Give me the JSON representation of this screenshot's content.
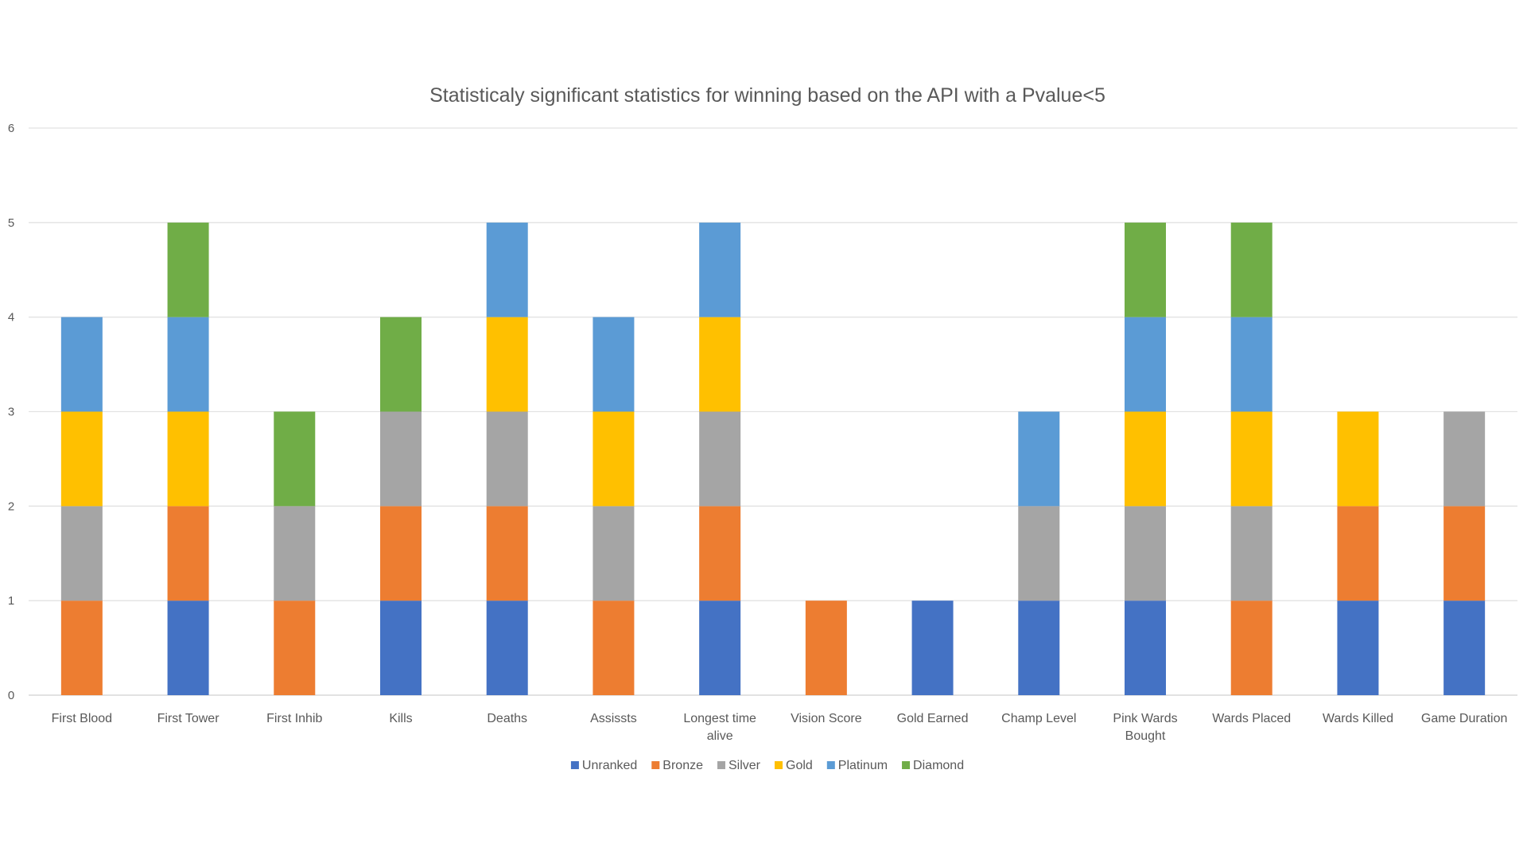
{
  "chart_data": {
    "type": "bar",
    "stacked": true,
    "title": "Statisticaly significant statistics for winning based on the API with a Pvalue<5",
    "xlabel": "",
    "ylabel": "",
    "ylim": [
      0,
      6
    ],
    "yticks": [
      0,
      1,
      2,
      3,
      4,
      5,
      6
    ],
    "grid": true,
    "legend_position": "bottom",
    "categories": [
      "First Blood",
      "First Tower",
      "First Inhib",
      "Kills",
      "Deaths",
      "Assissts",
      "Longest time alive",
      "Vision Score",
      "Gold Earned",
      "Champ Level",
      "Pink Wards Bought",
      "Wards Placed",
      "Wards Killed",
      "Game Duration"
    ],
    "series": [
      {
        "name": "Unranked",
        "color": "#4472C4",
        "values": [
          0,
          1,
          0,
          1,
          1,
          0,
          1,
          0,
          1,
          1,
          1,
          0,
          1,
          1
        ]
      },
      {
        "name": "Bronze",
        "color": "#ED7D31",
        "values": [
          1,
          1,
          1,
          1,
          1,
          1,
          1,
          1,
          0,
          0,
          0,
          1,
          1,
          1
        ]
      },
      {
        "name": "Silver",
        "color": "#A5A5A5",
        "values": [
          1,
          0,
          1,
          1,
          1,
          1,
          1,
          0,
          0,
          1,
          1,
          1,
          0,
          1
        ]
      },
      {
        "name": "Gold",
        "color": "#FFC000",
        "values": [
          1,
          1,
          0,
          0,
          1,
          1,
          1,
          0,
          0,
          0,
          1,
          1,
          1,
          0
        ]
      },
      {
        "name": "Platinum",
        "color": "#5B9BD5",
        "values": [
          1,
          1,
          0,
          0,
          1,
          1,
          1,
          0,
          0,
          1,
          1,
          1,
          0,
          0
        ]
      },
      {
        "name": "Diamond",
        "color": "#70AD47",
        "values": [
          0,
          1,
          1,
          1,
          0,
          0,
          0,
          0,
          0,
          0,
          1,
          1,
          0,
          0
        ]
      }
    ]
  }
}
